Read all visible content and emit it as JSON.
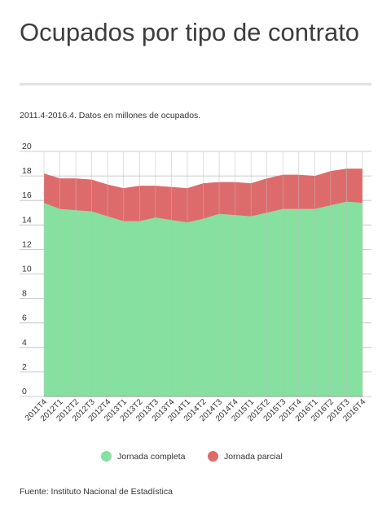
{
  "title": "Ocupados por tipo de contrato",
  "subtitle": "2011.4-2016.4. Datos en millones de ocupados.",
  "source": "Fuente: Instituto Nacional de Estadística",
  "colors": {
    "completa": "#86e0a0",
    "parcial": "#de6b6b",
    "grid": "#bdbdbd",
    "axis": "#999999"
  },
  "chart_data": {
    "type": "area",
    "stacked": true,
    "categories": [
      "2011T4",
      "2012T1",
      "2012T2",
      "2012T3",
      "2012T4",
      "2013T1",
      "2013T2",
      "2013T3",
      "2013T4",
      "2014T1",
      "2014T2",
      "2014T3",
      "2014T4",
      "2015T1",
      "2015T2",
      "2015T3",
      "2015T4",
      "2016T1",
      "2016T2",
      "2016T3",
      "2016T4"
    ],
    "series": [
      {
        "name": "Jornada completa",
        "color": "#86e0a0",
        "values": [
          15.8,
          15.3,
          15.2,
          15.1,
          14.7,
          14.3,
          14.3,
          14.6,
          14.4,
          14.2,
          14.5,
          14.9,
          14.8,
          14.7,
          15.0,
          15.3,
          15.3,
          15.3,
          15.6,
          15.9,
          15.8
        ]
      },
      {
        "name": "Jornada parcial",
        "color": "#de6b6b",
        "values": [
          2.4,
          2.5,
          2.6,
          2.6,
          2.6,
          2.7,
          2.9,
          2.6,
          2.7,
          2.8,
          2.9,
          2.6,
          2.7,
          2.7,
          2.8,
          2.8,
          2.8,
          2.7,
          2.8,
          2.7,
          2.8
        ]
      }
    ],
    "yticks": [
      0,
      2,
      4,
      6,
      8,
      10,
      12,
      14,
      16,
      18,
      20
    ],
    "ylim": [
      0,
      20
    ],
    "grid": true,
    "legend": "bottom-center"
  }
}
